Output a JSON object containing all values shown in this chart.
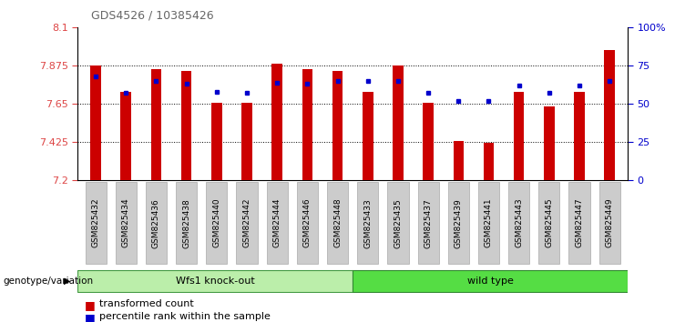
{
  "title": "GDS4526 / 10385426",
  "samples": [
    "GSM825432",
    "GSM825434",
    "GSM825436",
    "GSM825438",
    "GSM825440",
    "GSM825442",
    "GSM825444",
    "GSM825446",
    "GSM825448",
    "GSM825433",
    "GSM825435",
    "GSM825437",
    "GSM825439",
    "GSM825441",
    "GSM825443",
    "GSM825445",
    "GSM825447",
    "GSM825449"
  ],
  "bar_values": [
    7.875,
    7.72,
    7.855,
    7.845,
    7.655,
    7.655,
    7.885,
    7.855,
    7.845,
    7.72,
    7.875,
    7.655,
    7.43,
    7.42,
    7.72,
    7.635,
    7.72,
    7.965
  ],
  "dot_values": [
    68,
    57,
    65,
    63,
    58,
    57,
    64,
    63,
    65,
    65,
    65,
    57,
    52,
    52,
    62,
    57,
    62,
    65
  ],
  "y_min": 7.2,
  "y_max": 8.1,
  "y_ticks": [
    7.2,
    7.425,
    7.65,
    7.875,
    8.1
  ],
  "y_tick_labels": [
    "7.2",
    "7.425",
    "7.65",
    "7.875",
    "8.1"
  ],
  "y2_ticks": [
    0,
    25,
    50,
    75,
    100
  ],
  "y2_tick_labels": [
    "0",
    "25",
    "50",
    "75",
    "100%"
  ],
  "group1_label": "Wfs1 knock-out",
  "group2_label": "wild type",
  "genotype_label": "genotype/variation",
  "bar_color": "#cc0000",
  "dot_color": "#0000cc",
  "group1_color": "#bbeeaa",
  "group2_color": "#55dd44",
  "group1_count": 9,
  "group2_count": 9,
  "legend_bar_label": "transformed count",
  "legend_dot_label": "percentile rank within the sample",
  "title_color": "#666666",
  "axis_label_color_left": "#dd4444",
  "axis_label_color_right": "#0000cc",
  "xlabel_bg_color": "#cccccc",
  "plot_bg_color": "#ffffff",
  "bar_width": 0.35
}
